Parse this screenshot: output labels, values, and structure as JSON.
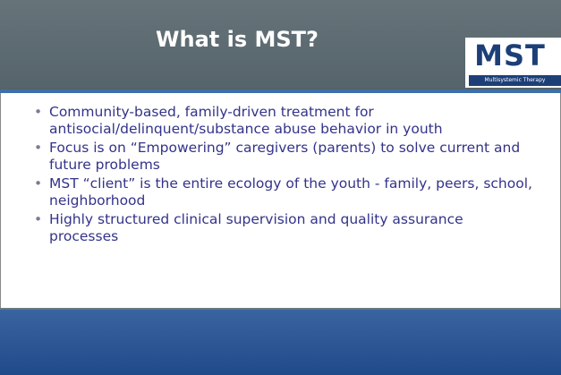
{
  "slide": {
    "title": "What is MST?",
    "logo": {
      "mark": "MST",
      "subtitle": "Multisystemic Therapy"
    },
    "bullets": [
      "Community-based, family-driven treatment for antisocial/delinquent/substance abuse behavior in youth",
      "Focus is on “Empowering” caregivers (parents) to solve current and future problems",
      "MST “client” is the entire ecology of the youth - family, peers, school, neighborhood",
      "Highly structured clinical supervision and quality assurance processes"
    ]
  }
}
